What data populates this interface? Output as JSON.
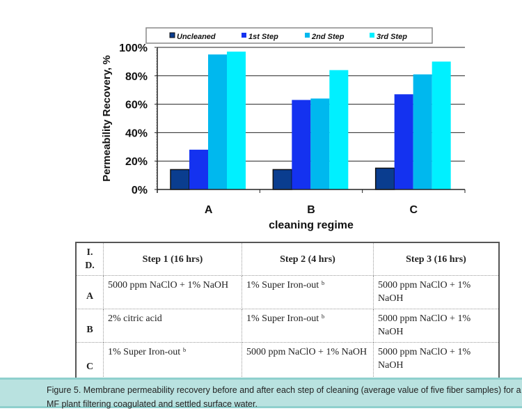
{
  "chart_data": {
    "type": "bar",
    "title": "",
    "xlabel": "cleaning regime",
    "ylabel": "Permeability Recovery, %",
    "ylim": [
      0,
      100
    ],
    "yticks": [
      "0%",
      "20%",
      "40%",
      "60%",
      "80%",
      "100%"
    ],
    "categories": [
      "A",
      "B",
      "C"
    ],
    "legend_position": "top",
    "grid": true,
    "series": [
      {
        "name": "Uncleaned",
        "color": "#0a3d8f",
        "values": [
          14,
          14,
          15
        ]
      },
      {
        "name": "1st Step",
        "color": "#1432f0",
        "values": [
          28,
          63,
          67
        ]
      },
      {
        "name": "2nd Step",
        "color": "#00b8ee",
        "values": [
          95,
          64,
          81
        ]
      },
      {
        "name": "3rd Step",
        "color": "#00f0ff",
        "values": [
          97,
          84,
          90
        ]
      }
    ]
  },
  "table": {
    "headers": [
      "I. D.",
      "Step 1 (16 hrs)",
      "Step 2 (4 hrs)",
      "Step 3 (16 hrs)"
    ],
    "rows": [
      {
        "id": "A",
        "cells": [
          "5000 ppm NaClO + 1% NaOH",
          "1% Super Iron-out ᵇ",
          "5000 ppm NaClO + 1% NaOH"
        ]
      },
      {
        "id": "B",
        "cells": [
          "2% citric acid",
          "1% Super Iron-out ᵇ",
          "5000 ppm NaClO + 1% NaOH"
        ]
      },
      {
        "id": "C",
        "cells": [
          "1% Super Iron-out ᵇ",
          "5000 ppm NaClO + 1% NaOH",
          "5000 ppm NaClO + 1% NaOH"
        ]
      }
    ]
  },
  "caption": "Figure 5. Membrane permeability recovery before and after each step of cleaning (average value of five fiber samples) for a MF plant filtering coagulated and settled surface water."
}
